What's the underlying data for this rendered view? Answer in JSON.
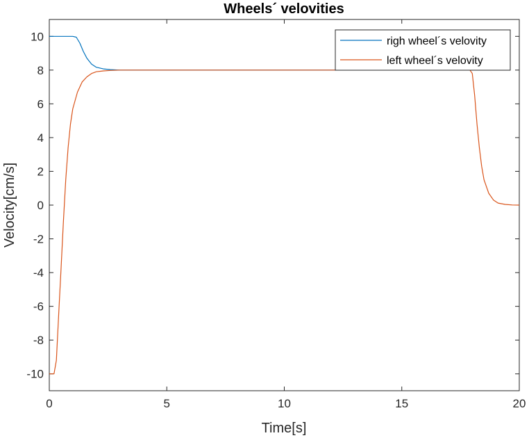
{
  "chart_data": {
    "type": "line",
    "title": "Wheels´ velovities",
    "xlabel": "Time[s]",
    "ylabel": "Velocity[cm/s]",
    "xlim": [
      0,
      20
    ],
    "ylim": [
      -11,
      11
    ],
    "xticks": [
      0,
      5,
      10,
      15,
      20
    ],
    "yticks": [
      -10,
      -8,
      -6,
      -4,
      -2,
      0,
      2,
      4,
      6,
      8,
      10
    ],
    "grid": false,
    "legend_position": "top-right",
    "series": [
      {
        "name": "righ wheel´s velovity",
        "color": "#0072BD",
        "x": [
          0,
          0.5,
          1.0,
          1.15,
          1.3,
          1.45,
          1.6,
          1.8,
          2.0,
          2.3,
          2.6,
          3.0,
          4,
          6,
          8,
          10,
          12,
          14,
          16,
          17.5,
          17.9
        ],
        "y": [
          10,
          10,
          10,
          9.95,
          9.6,
          9.1,
          8.7,
          8.35,
          8.17,
          8.07,
          8.03,
          8.0,
          8,
          8,
          8,
          8,
          8,
          8,
          8,
          8,
          8
        ]
      },
      {
        "name": "left wheel´s velovity",
        "color": "#D95319",
        "x": [
          0,
          0.2,
          0.3,
          0.4,
          0.5,
          0.6,
          0.7,
          0.8,
          0.9,
          1.0,
          1.2,
          1.4,
          1.6,
          1.8,
          2.0,
          2.3,
          2.6,
          3.0,
          3.5,
          5,
          8,
          10,
          12,
          15,
          17.5,
          17.9,
          18.0,
          18.1,
          18.2,
          18.3,
          18.4,
          18.5,
          18.7,
          18.9,
          19.1,
          19.4,
          19.7,
          20.0
        ],
        "y": [
          -10,
          -10,
          -9.2,
          -6.5,
          -3.8,
          -1.0,
          1.5,
          3.4,
          4.8,
          5.7,
          6.7,
          7.3,
          7.6,
          7.8,
          7.9,
          7.95,
          7.98,
          8,
          8,
          8,
          8,
          8,
          8,
          8,
          8,
          8,
          7.8,
          6.5,
          4.8,
          3.4,
          2.3,
          1.5,
          0.7,
          0.3,
          0.12,
          0.04,
          0.01,
          0
        ]
      }
    ]
  }
}
